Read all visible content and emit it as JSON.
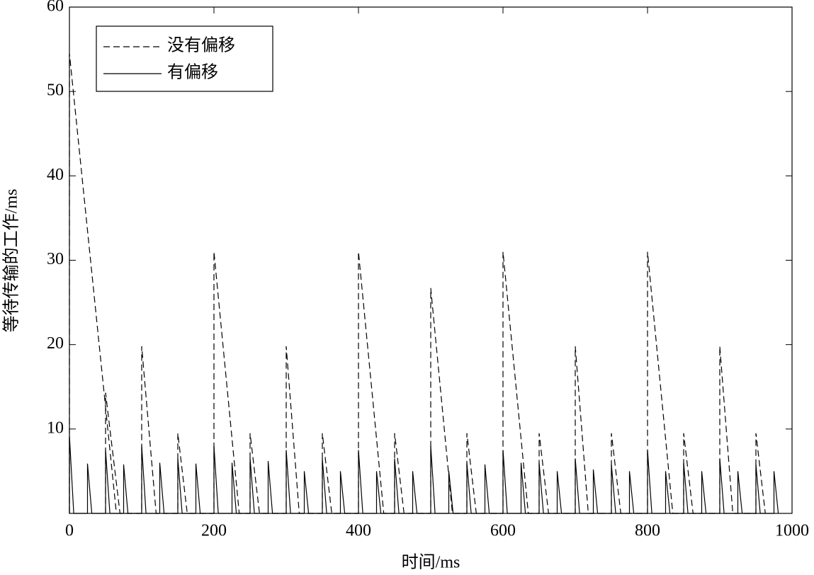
{
  "chart_data": {
    "type": "line",
    "x_label": "时间/ms",
    "y_label": "等待传输的工作/ms",
    "xlim": [
      0,
      1000
    ],
    "xticks": [
      0,
      200,
      400,
      600,
      800,
      1000
    ],
    "ylim": [
      0,
      60
    ],
    "yticks": [
      10,
      20,
      30,
      40,
      50,
      60
    ],
    "legend": "upper left",
    "series": [
      {
        "name": "没有偏移",
        "color": "#000000",
        "dash": "dashed",
        "x": [
          0,
          0,
          65,
          null,
          50,
          50,
          70,
          100,
          100,
          120,
          150,
          150,
          163,
          200,
          200,
          235,
          250,
          250,
          263,
          300,
          300,
          318,
          350,
          350,
          363,
          400,
          400,
          435,
          450,
          450,
          463,
          500,
          500,
          530,
          550,
          550,
          563,
          600,
          600,
          635,
          650,
          650,
          663,
          700,
          700,
          718,
          750,
          750,
          763,
          800,
          800,
          835,
          850,
          850,
          863,
          900,
          900,
          918,
          950,
          950,
          963
        ],
        "values": [
          0,
          54.5,
          0,
          null,
          0,
          14.3,
          0,
          0,
          19.8,
          0,
          0,
          9.5,
          0,
          0,
          31,
          0,
          0,
          9.5,
          0,
          0,
          19.8,
          0,
          0,
          9.5,
          0,
          0,
          31,
          0,
          0,
          9.5,
          0,
          0,
          26.7,
          0,
          0,
          9.5,
          0,
          0,
          31,
          0,
          0,
          9.5,
          0,
          0,
          19.8,
          0,
          0,
          9.5,
          0,
          0,
          31,
          0,
          0,
          9.5,
          0,
          0,
          19.8,
          0,
          0,
          9.5,
          0
        ]
      },
      {
        "name": "有偏移",
        "color": "#000000",
        "dash": "solid",
        "x": [
          0,
          0,
          6,
          25,
          25,
          31,
          50,
          50,
          56,
          75,
          75,
          81,
          100,
          100,
          106,
          125,
          125,
          131,
          150,
          150,
          156,
          175,
          175,
          181,
          200,
          200,
          206,
          225,
          225,
          231,
          250,
          250,
          256,
          275,
          275,
          281,
          300,
          300,
          306,
          325,
          325,
          331,
          350,
          350,
          356,
          375,
          375,
          381,
          400,
          400,
          406,
          425,
          425,
          431,
          450,
          450,
          456,
          475,
          475,
          481,
          500,
          500,
          506,
          525,
          525,
          531,
          550,
          550,
          556,
          575,
          575,
          581,
          600,
          600,
          606,
          625,
          625,
          631,
          650,
          650,
          656,
          675,
          675,
          681,
          700,
          700,
          706,
          725,
          725,
          731,
          750,
          750,
          756,
          775,
          775,
          781,
          800,
          800,
          806,
          825,
          825,
          831,
          850,
          850,
          856,
          875,
          875,
          881,
          900,
          900,
          906,
          925,
          925,
          931,
          950,
          950,
          956,
          975,
          975,
          981
        ],
        "values": [
          0,
          9.2,
          0,
          0,
          5.9,
          0,
          0,
          7.5,
          0,
          0,
          5.8,
          0,
          0,
          8,
          0,
          0,
          6,
          0,
          0,
          6.5,
          0,
          0,
          5.9,
          0,
          0,
          8,
          0,
          0,
          6,
          0,
          0,
          6.5,
          0,
          0,
          6.2,
          0,
          0,
          7.5,
          0,
          0,
          5,
          0,
          0,
          6.5,
          0,
          0,
          5,
          0,
          0,
          7.5,
          0,
          0,
          5,
          0,
          0,
          6.5,
          0,
          0,
          5,
          0,
          0,
          8,
          0,
          0,
          5,
          0,
          0,
          6,
          0,
          0,
          5.8,
          0,
          0,
          7.5,
          0,
          0,
          6,
          0,
          0,
          6,
          0,
          0,
          5,
          0,
          0,
          6.5,
          0,
          0,
          5.2,
          0,
          0,
          5.8,
          0,
          0,
          5,
          0,
          0,
          7.5,
          0,
          0,
          5,
          0,
          0,
          6,
          0,
          0,
          5,
          0,
          0,
          6.5,
          0,
          0,
          5,
          0,
          0,
          5.8,
          0,
          0,
          5,
          0
        ]
      }
    ]
  }
}
